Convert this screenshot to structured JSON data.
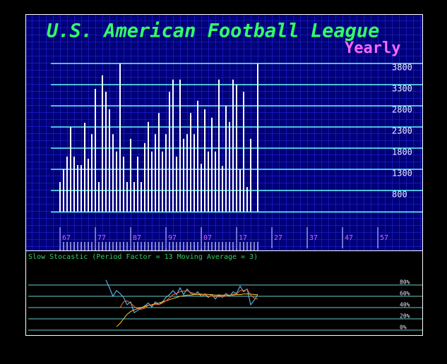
{
  "chart_data": [
    {
      "type": "bar",
      "title": "U.S. American Football League",
      "subtitle": "Yearly",
      "color": "#ffffff",
      "values": [
        1000,
        1300,
        1600,
        2300,
        1600,
        1400,
        1400,
        2400,
        1550,
        2130,
        3200,
        1000,
        3520,
        3130,
        2720,
        2130,
        1720,
        3800,
        1600,
        1000,
        2020,
        1000,
        1600,
        1000,
        1920,
        2420,
        1720,
        2130,
        2630,
        1720,
        2130,
        3130,
        3420,
        1600,
        3420,
        2020,
        2130,
        2630,
        2130,
        2920,
        1430,
        2720,
        1720,
        2520,
        1720,
        3420,
        1380,
        2800,
        2420,
        3420,
        3300,
        1300,
        3130,
        880,
        2020,
        null,
        3800
      ],
      "xlim": [
        -3,
        103
      ],
      "xticks": [
        {
          "value": 1,
          "label": "67"
        },
        {
          "value": 11,
          "label": "77"
        },
        {
          "value": 21,
          "label": "87"
        },
        {
          "value": 31,
          "label": "97"
        },
        {
          "value": 41,
          "label": "07"
        },
        {
          "value": 51,
          "label": "17"
        },
        {
          "value": 61,
          "label": "27"
        },
        {
          "value": 71,
          "label": "37"
        },
        {
          "value": 81,
          "label": "47"
        },
        {
          "value": 91,
          "label": "57"
        }
      ],
      "ylim": [
        300,
        3800
      ],
      "yticks": [
        800,
        1300,
        1800,
        2300,
        2800,
        3300,
        3800
      ],
      "grid": true
    },
    {
      "type": "line",
      "title": "Slow Stocastic (Period Factor =  13 Moving Average =  3)",
      "xlim": [
        -3,
        103
      ],
      "ylim": [
        0,
        80
      ],
      "yticks": [
        {
          "value": 80,
          "label": "80%"
        },
        {
          "value": 60,
          "label": "60%"
        },
        {
          "value": 40,
          "label": "40%"
        },
        {
          "value": 20,
          "label": "20%"
        },
        {
          "value": 0,
          "label": "0%"
        }
      ],
      "series": [
        {
          "color": "#66ccff",
          "values": [
            null,
            null,
            null,
            null,
            null,
            null,
            null,
            null,
            null,
            null,
            null,
            null,
            null,
            89,
            75,
            60,
            70,
            65,
            58,
            45,
            50,
            31,
            35,
            39,
            43,
            48,
            41,
            50,
            45,
            50,
            58,
            63,
            70,
            63,
            75,
            63,
            73,
            65,
            63,
            68,
            60,
            63,
            58,
            63,
            55,
            63,
            58,
            65,
            60,
            68,
            65,
            78,
            68,
            73,
            45,
            53,
            63
          ]
        },
        {
          "color": "#ffcc33",
          "values": [
            null,
            null,
            null,
            null,
            null,
            null,
            null,
            null,
            null,
            null,
            null,
            null,
            null,
            null,
            null,
            null,
            6,
            12,
            20,
            28,
            33,
            36,
            38,
            40,
            42,
            44,
            45,
            47,
            48,
            50,
            52,
            54,
            56,
            58,
            60,
            61,
            62,
            62,
            63,
            63,
            63,
            64,
            63,
            63,
            62,
            62,
            62,
            62,
            62,
            62,
            63,
            63,
            64,
            64,
            64,
            63,
            63
          ]
        },
        {
          "color": "#ff6633",
          "values": [
            null,
            null,
            null,
            null,
            null,
            null,
            null,
            null,
            null,
            null,
            null,
            null,
            null,
            null,
            null,
            null,
            null,
            40,
            50,
            52,
            48,
            42,
            38,
            37,
            39,
            44,
            44,
            46,
            45,
            48,
            52,
            57,
            63,
            65,
            68,
            69,
            70,
            67,
            65,
            65,
            64,
            63,
            60,
            60,
            59,
            59,
            59,
            60,
            61,
            64,
            64,
            70,
            70,
            72,
            62,
            57,
            55
          ]
        }
      ]
    }
  ]
}
